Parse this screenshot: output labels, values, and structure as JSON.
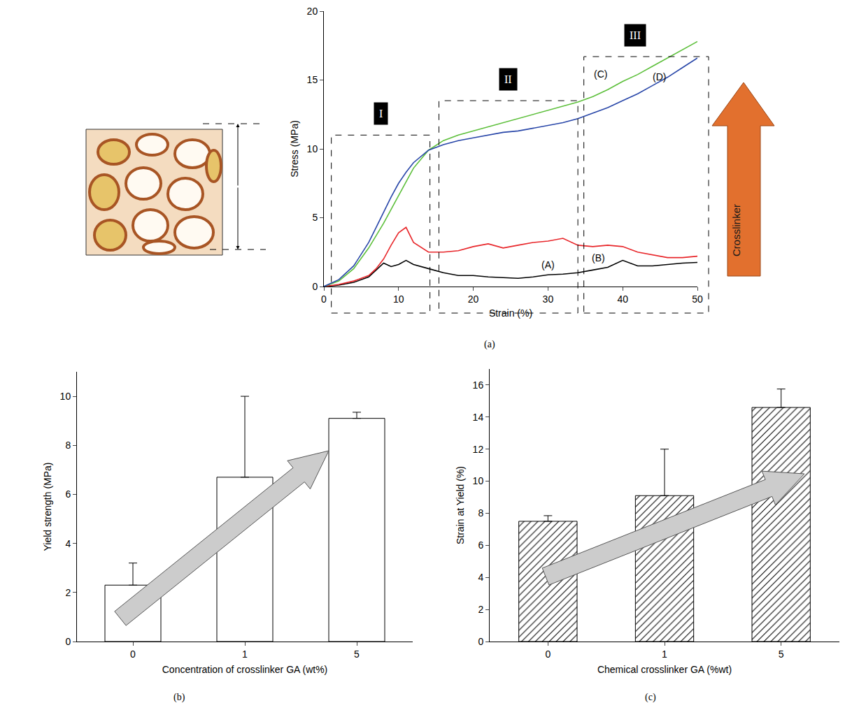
{
  "chart_data": [
    {
      "type": "line",
      "label": "(a)",
      "x_label": "Strain (%)",
      "y_label": "Stress (MPa)",
      "x": [
        0,
        2,
        4,
        6,
        7,
        8,
        9,
        10,
        11,
        12,
        14,
        16,
        18,
        20,
        22,
        24,
        26,
        28,
        30,
        32,
        34,
        36,
        38,
        40,
        42,
        44,
        46,
        48,
        50
      ],
      "series": [
        {
          "name": "(A)",
          "color": "#000000",
          "values": [
            0,
            0.1,
            0.3,
            0.7,
            1.2,
            1.7,
            1.45,
            1.6,
            1.9,
            1.6,
            1.3,
            1.0,
            0.8,
            0.8,
            0.7,
            0.65,
            0.6,
            0.7,
            0.85,
            0.9,
            1.0,
            1.2,
            1.4,
            1.9,
            1.5,
            1.5,
            1.6,
            1.7,
            1.75
          ]
        },
        {
          "name": "(B)",
          "color": "#e8262a",
          "values": [
            0,
            0.15,
            0.4,
            0.8,
            1.3,
            2.0,
            3.0,
            3.9,
            4.3,
            3.2,
            2.5,
            2.5,
            2.6,
            2.9,
            3.1,
            2.8,
            3.0,
            3.2,
            3.3,
            3.5,
            3.0,
            2.9,
            3.0,
            2.9,
            2.5,
            2.3,
            2.1,
            2.1,
            2.2
          ]
        },
        {
          "name": "(C)",
          "color": "#5cbf3a",
          "values": [
            0,
            0.4,
            1.3,
            2.8,
            3.7,
            4.6,
            5.6,
            6.6,
            7.6,
            8.6,
            9.9,
            10.6,
            11.0,
            11.3,
            11.6,
            11.9,
            12.2,
            12.5,
            12.8,
            13.1,
            13.4,
            13.8,
            14.3,
            14.9,
            15.4,
            16.0,
            16.6,
            17.2,
            17.8
          ]
        },
        {
          "name": "(D)",
          "color": "#2846a8",
          "values": [
            0,
            0.5,
            1.5,
            3.2,
            4.3,
            5.4,
            6.5,
            7.5,
            8.3,
            9.0,
            9.9,
            10.3,
            10.6,
            10.8,
            11.0,
            11.2,
            11.3,
            11.5,
            11.7,
            11.9,
            12.2,
            12.6,
            13.0,
            13.5,
            14.0,
            14.6,
            15.2,
            15.9,
            16.6
          ]
        }
      ],
      "xlim": [
        0,
        50
      ],
      "xticks": [
        0,
        10,
        20,
        30,
        40,
        50
      ],
      "ylim": [
        0,
        20
      ],
      "yticks": [
        0,
        5,
        10,
        15,
        20
      ],
      "grid": false,
      "regions": [
        {
          "label": "I",
          "x": [
            1,
            14.2
          ],
          "top": 11
        },
        {
          "label": "II",
          "x": [
            15.4,
            34
          ],
          "top": 13.5
        },
        {
          "label": "III",
          "x": [
            34.8,
            51.5
          ],
          "top": 16.7
        }
      ],
      "arrow_label": "Crosslinker"
    },
    {
      "type": "bar",
      "label": "(b)",
      "x_label": "Concentration of crosslinker GA (wt%)",
      "y_label": "Yield strength (MPa)",
      "categories": [
        "0",
        "1",
        "5"
      ],
      "values": [
        2.3,
        6.7,
        9.1
      ],
      "errors": [
        0.9,
        3.3,
        0.25
      ],
      "color": "#ffffff",
      "ylim": [
        0,
        11
      ],
      "yticks": [
        0,
        2,
        4,
        6,
        8,
        10
      ],
      "grid": false
    },
    {
      "type": "bar",
      "label": "(c)",
      "x_label": "Chemical crosslinker GA (%wt)",
      "y_label": "Strain at Yield (%)",
      "categories": [
        "0",
        "1",
        "5"
      ],
      "values": [
        7.5,
        9.1,
        14.6
      ],
      "errors": [
        0.35,
        2.9,
        1.15
      ],
      "color": "#ffffff",
      "marker": "hatch",
      "ylim": [
        0,
        17
      ],
      "yticks": [
        0,
        2,
        4,
        6,
        8,
        10,
        12,
        14,
        16
      ],
      "grid": false
    }
  ]
}
